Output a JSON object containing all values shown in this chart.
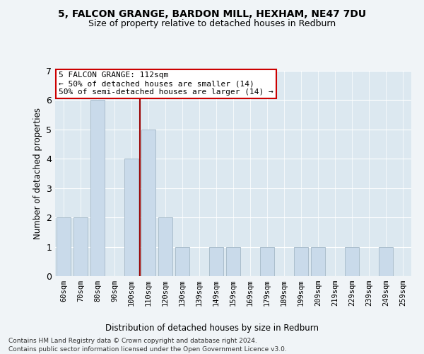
{
  "title1": "5, FALCON GRANGE, BARDON MILL, HEXHAM, NE47 7DU",
  "title2": "Size of property relative to detached houses in Redburn",
  "xlabel": "Distribution of detached houses by size in Redburn",
  "ylabel": "Number of detached properties",
  "categories": [
    "60sqm",
    "70sqm",
    "80sqm",
    "90sqm",
    "100sqm",
    "110sqm",
    "120sqm",
    "130sqm",
    "139sqm",
    "149sqm",
    "159sqm",
    "169sqm",
    "179sqm",
    "189sqm",
    "199sqm",
    "209sqm",
    "219sqm",
    "229sqm",
    "239sqm",
    "249sqm",
    "259sqm"
  ],
  "values": [
    2,
    2,
    6,
    0,
    4,
    5,
    2,
    1,
    0,
    1,
    1,
    0,
    1,
    0,
    1,
    1,
    0,
    1,
    0,
    1,
    0
  ],
  "bar_color": "#c9daea",
  "bar_edge_color": "#aabdcc",
  "highlight_line_color": "#990000",
  "annotation_text": "5 FALCON GRANGE: 112sqm\n← 50% of detached houses are smaller (14)\n50% of semi-detached houses are larger (14) →",
  "annotation_box_color": "#ffffff",
  "annotation_box_edge": "#cc0000",
  "ylim": [
    0,
    7
  ],
  "yticks": [
    0,
    1,
    2,
    3,
    4,
    5,
    6,
    7
  ],
  "grid_color": "#ffffff",
  "background_color": "#dce8f0",
  "fig_background": "#f0f4f7",
  "footer1": "Contains HM Land Registry data © Crown copyright and database right 2024.",
  "footer2": "Contains public sector information licensed under the Open Government Licence v3.0.",
  "highlight_line_index": 4.5
}
